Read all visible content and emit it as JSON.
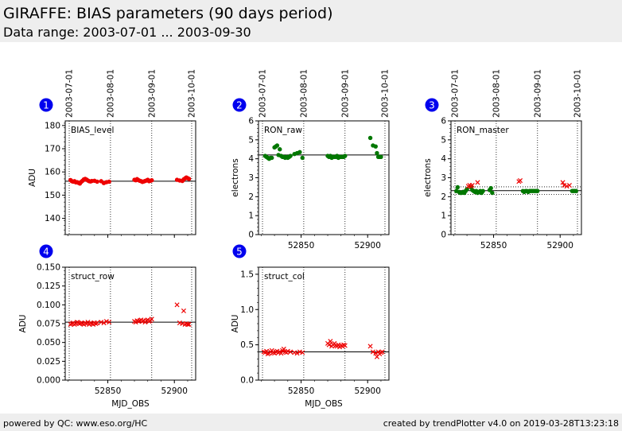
{
  "header": {
    "title": "GIRAFFE: BIAS parameters (90 days period)",
    "subtitle": "Data range: 2003-07-01 ... 2003-09-30"
  },
  "footer": {
    "left": "powered by QC: www.eso.org/HC",
    "right": "created by trendPlotter v4.0 on 2019-03-28T13:23:18"
  },
  "colors": {
    "red": "#ee0000",
    "green": "#007700",
    "badge": "#0000ee"
  },
  "date_axis": {
    "labels": [
      "2003-07-01",
      "2003-08-01",
      "2003-09-01",
      "2003-10-01"
    ],
    "mjd": [
      52821,
      52852,
      52883,
      52913
    ]
  },
  "chart_data": [
    {
      "id": 1,
      "badge": "1",
      "type": "scatter",
      "label": "BIAS_level",
      "ylabel": "ADU",
      "xlabel": "",
      "xlim": [
        52818,
        52916
      ],
      "ylim": [
        133,
        182
      ],
      "yticks": [
        140,
        150,
        160,
        170,
        180
      ],
      "ytick_labels": [
        "140",
        "150",
        "160",
        "170",
        "180"
      ],
      "xticks": [
        52850,
        52900
      ],
      "xtick_labels": [
        "",
        ""
      ],
      "hlines": [
        156.0
      ],
      "series": [
        {
          "marker": "dot",
          "color": "red",
          "x": [
            52822,
            52823,
            52824,
            52825,
            52826,
            52827,
            52828,
            52829,
            52830,
            52831,
            52832,
            52833,
            52834,
            52835,
            52836,
            52837,
            52838,
            52840,
            52842,
            52845,
            52847,
            52849,
            52851,
            52870,
            52871,
            52872,
            52873,
            52874,
            52875,
            52876,
            52877,
            52878,
            52879,
            52880,
            52881,
            52882,
            52883,
            52902,
            52904,
            52906,
            52907,
            52908,
            52909,
            52910,
            52911
          ],
          "y": [
            156.5,
            156.0,
            155.8,
            156.0,
            155.5,
            155.6,
            155.3,
            155.0,
            155.7,
            156.2,
            156.8,
            157.0,
            156.7,
            156.3,
            156.0,
            155.9,
            156.1,
            156.2,
            155.8,
            156.0,
            155.2,
            155.6,
            155.8,
            156.6,
            156.4,
            156.9,
            156.5,
            156.2,
            156.0,
            155.7,
            155.9,
            156.1,
            156.3,
            156.6,
            156.0,
            156.2,
            156.4,
            156.6,
            156.3,
            156.1,
            156.8,
            157.2,
            157.6,
            157.3,
            157.0
          ]
        }
      ]
    },
    {
      "id": 2,
      "badge": "2",
      "type": "scatter",
      "label": "RON_raw",
      "ylabel": "electrons",
      "xlabel": "",
      "xlim": [
        52818,
        52916
      ],
      "ylim": [
        0,
        6
      ],
      "yticks": [
        0,
        1,
        2,
        3,
        4,
        5,
        6
      ],
      "ytick_labels": [
        "0",
        "1",
        "2",
        "3",
        "4",
        "5",
        "6"
      ],
      "xticks": [
        52850,
        52900
      ],
      "xtick_labels": [
        "52850",
        "52900"
      ],
      "hlines": [
        4.2
      ],
      "series": [
        {
          "marker": "dot",
          "color": "green",
          "x": [
            52823,
            52824,
            52825,
            52826,
            52827,
            52828,
            52830,
            52831,
            52832,
            52833,
            52834,
            52835,
            52836,
            52837,
            52838,
            52839,
            52840,
            52841,
            52842,
            52845,
            52847,
            52849,
            52851,
            52870,
            52871,
            52872,
            52873,
            52874,
            52875,
            52876,
            52877,
            52878,
            52879,
            52880,
            52881,
            52882,
            52883,
            52902,
            52904,
            52906,
            52907,
            52908,
            52909,
            52910
          ],
          "y": [
            4.15,
            4.1,
            4.05,
            4.0,
            4.05,
            4.05,
            4.6,
            4.65,
            4.7,
            4.2,
            4.5,
            4.15,
            4.1,
            4.1,
            4.05,
            4.1,
            4.05,
            4.1,
            4.15,
            4.25,
            4.3,
            4.35,
            4.05,
            4.15,
            4.1,
            4.15,
            4.05,
            4.1,
            4.1,
            4.1,
            4.15,
            4.05,
            4.1,
            4.1,
            4.1,
            4.1,
            4.15,
            5.1,
            4.7,
            4.65,
            4.3,
            4.1,
            4.1,
            4.1
          ]
        }
      ]
    },
    {
      "id": 3,
      "badge": "3",
      "type": "scatter",
      "label": "RON_master",
      "ylabel": "electrons",
      "xlabel": "",
      "xlim": [
        52818,
        52916
      ],
      "ylim": [
        0,
        6
      ],
      "yticks": [
        0,
        1,
        2,
        3,
        4,
        5,
        6
      ],
      "ytick_labels": [
        "0",
        "1",
        "2",
        "3",
        "4",
        "5",
        "6"
      ],
      "xticks": [
        52850,
        52900
      ],
      "xtick_labels": [
        "52850",
        "52900"
      ],
      "hlines": [
        2.32
      ],
      "hlines_dotted": [
        2.52,
        2.12
      ],
      "series": [
        {
          "marker": "dot",
          "color": "green",
          "x": [
            52822,
            52823,
            52824,
            52825,
            52826,
            52827,
            52828,
            52829,
            52830,
            52833,
            52834,
            52835,
            52836,
            52837,
            52838,
            52839,
            52840,
            52841,
            52842,
            52847,
            52848,
            52849,
            52872,
            52873,
            52874,
            52875,
            52876,
            52877,
            52878,
            52879,
            52880,
            52881,
            52882,
            52883,
            52909,
            52910,
            52911,
            52912
          ],
          "y": [
            2.3,
            2.5,
            2.25,
            2.2,
            2.2,
            2.25,
            2.2,
            2.3,
            2.4,
            2.5,
            2.35,
            2.3,
            2.25,
            2.3,
            2.2,
            2.25,
            2.3,
            2.2,
            2.3,
            2.35,
            2.45,
            2.2,
            2.3,
            2.25,
            2.3,
            2.3,
            2.25,
            2.3,
            2.3,
            2.3,
            2.3,
            2.3,
            2.3,
            2.3,
            2.3,
            2.3,
            2.3,
            2.3
          ]
        },
        {
          "marker": "cross",
          "color": "red",
          "x": [
            52831,
            52832,
            52833,
            52834,
            52838,
            52869,
            52870,
            52902,
            52903,
            52905,
            52907
          ],
          "y": [
            2.55,
            2.6,
            2.55,
            2.6,
            2.75,
            2.8,
            2.85,
            2.75,
            2.6,
            2.55,
            2.6
          ]
        }
      ]
    },
    {
      "id": 4,
      "badge": "4",
      "type": "scatter",
      "label": "struct_row",
      "ylabel": "ADU",
      "xlabel": "MJD_OBS",
      "xlim": [
        52818,
        52916
      ],
      "ylim": [
        0,
        0.15
      ],
      "yticks": [
        0,
        0.025,
        0.05,
        0.075,
        0.1,
        0.125,
        0.15
      ],
      "ytick_labels": [
        "0.000",
        "0.025",
        "0.050",
        "0.075",
        "0.100",
        "0.125",
        "0.150"
      ],
      "xticks": [
        52850,
        52900
      ],
      "xtick_labels": [
        "52850",
        "52900"
      ],
      "hlines": [
        0.077
      ],
      "series": [
        {
          "marker": "cross",
          "color": "red",
          "x": [
            52822,
            52823,
            52824,
            52825,
            52826,
            52827,
            52828,
            52829,
            52830,
            52831,
            52832,
            52833,
            52834,
            52835,
            52836,
            52837,
            52838,
            52839,
            52840,
            52841,
            52842,
            52845,
            52847,
            52849,
            52851,
            52870,
            52871,
            52872,
            52873,
            52874,
            52875,
            52876,
            52877,
            52878,
            52879,
            52880,
            52881,
            52882,
            52883,
            52902,
            52904,
            52906,
            52907,
            52908,
            52909,
            52910,
            52911
          ],
          "y": [
            0.074,
            0.075,
            0.076,
            0.074,
            0.075,
            0.077,
            0.076,
            0.075,
            0.076,
            0.075,
            0.074,
            0.076,
            0.075,
            0.077,
            0.074,
            0.076,
            0.075,
            0.074,
            0.076,
            0.075,
            0.076,
            0.077,
            0.076,
            0.078,
            0.077,
            0.078,
            0.077,
            0.079,
            0.078,
            0.079,
            0.08,
            0.078,
            0.079,
            0.077,
            0.079,
            0.08,
            0.078,
            0.079,
            0.081,
            0.1,
            0.076,
            0.075,
            0.092,
            0.074,
            0.075,
            0.074,
            0.074
          ]
        }
      ]
    },
    {
      "id": 5,
      "badge": "5",
      "type": "scatter",
      "label": "struct_col",
      "ylabel": "ADU",
      "xlabel": "MJD_OBS",
      "xlim": [
        52818,
        52916
      ],
      "ylim": [
        0,
        1.6
      ],
      "yticks": [
        0,
        0.5,
        1.0,
        1.5
      ],
      "ytick_labels": [
        "0.0",
        "0.5",
        "1.0",
        "1.5"
      ],
      "xticks": [
        52850,
        52900
      ],
      "xtick_labels": [
        "52850",
        "52900"
      ],
      "hlines": [
        0.4
      ],
      "series": [
        {
          "marker": "cross",
          "color": "red",
          "x": [
            52822,
            52823,
            52824,
            52825,
            52826,
            52827,
            52828,
            52829,
            52830,
            52831,
            52832,
            52833,
            52834,
            52835,
            52836,
            52837,
            52838,
            52839,
            52840,
            52842,
            52845,
            52847,
            52849,
            52851,
            52870,
            52871,
            52872,
            52873,
            52874,
            52875,
            52876,
            52877,
            52878,
            52879,
            52880,
            52881,
            52882,
            52883,
            52902,
            52904,
            52906,
            52907,
            52908,
            52909,
            52910,
            52911
          ],
          "y": [
            0.4,
            0.39,
            0.41,
            0.37,
            0.38,
            0.4,
            0.42,
            0.39,
            0.38,
            0.4,
            0.41,
            0.39,
            0.4,
            0.38,
            0.42,
            0.44,
            0.4,
            0.39,
            0.41,
            0.4,
            0.39,
            0.38,
            0.4,
            0.39,
            0.52,
            0.5,
            0.55,
            0.48,
            0.5,
            0.52,
            0.49,
            0.48,
            0.5,
            0.47,
            0.49,
            0.48,
            0.5,
            0.49,
            0.48,
            0.4,
            0.38,
            0.33,
            0.4,
            0.37,
            0.39,
            0.4
          ]
        }
      ]
    }
  ]
}
